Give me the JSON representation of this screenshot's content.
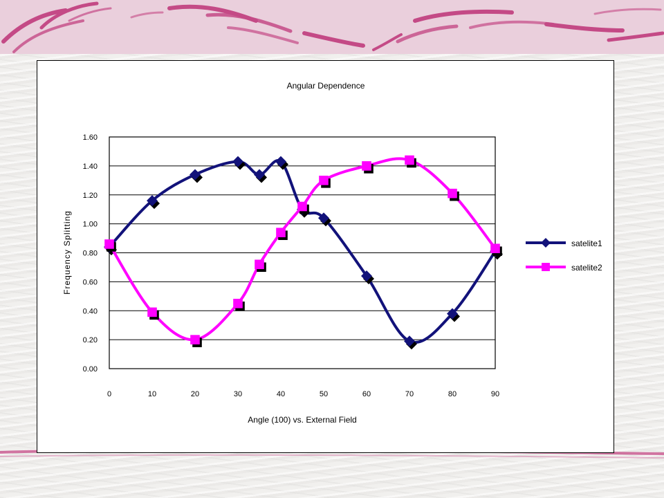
{
  "slide": {
    "banner_color": "#eacfdc",
    "swoosh_color": "#c44a86"
  },
  "chart_data": {
    "type": "line",
    "title": "Angular Dependence",
    "xlabel": "Angle (100) vs. External Field",
    "ylabel": "Frequency Splitting",
    "xlim": [
      0,
      90
    ],
    "ylim": [
      0,
      1.6
    ],
    "x_ticks": [
      "0",
      "10",
      "20",
      "30",
      "40",
      "50",
      "60",
      "70",
      "80",
      "90"
    ],
    "y_ticks": [
      "0.00",
      "0.20",
      "0.40",
      "0.60",
      "0.80",
      "1.00",
      "1.20",
      "1.40",
      "1.60"
    ],
    "grid": "horizontal",
    "legend_position": "right",
    "smooth": true,
    "series": [
      {
        "name": "satelite1",
        "color": "#12127a",
        "marker": "diamond",
        "x": [
          0,
          10,
          20,
          30,
          35,
          40,
          45,
          50,
          60,
          70,
          80,
          90
        ],
        "values": [
          0.84,
          1.16,
          1.34,
          1.43,
          1.34,
          1.43,
          1.1,
          1.04,
          0.64,
          0.19,
          0.38,
          0.81
        ]
      },
      {
        "name": "satelite2",
        "color": "#ff00ff",
        "marker": "square",
        "x": [
          0,
          10,
          20,
          30,
          35,
          40,
          45,
          50,
          60,
          70,
          80,
          90
        ],
        "values": [
          0.86,
          0.39,
          0.2,
          0.45,
          0.72,
          0.94,
          1.12,
          1.3,
          1.4,
          1.44,
          1.21,
          0.83
        ]
      }
    ]
  }
}
